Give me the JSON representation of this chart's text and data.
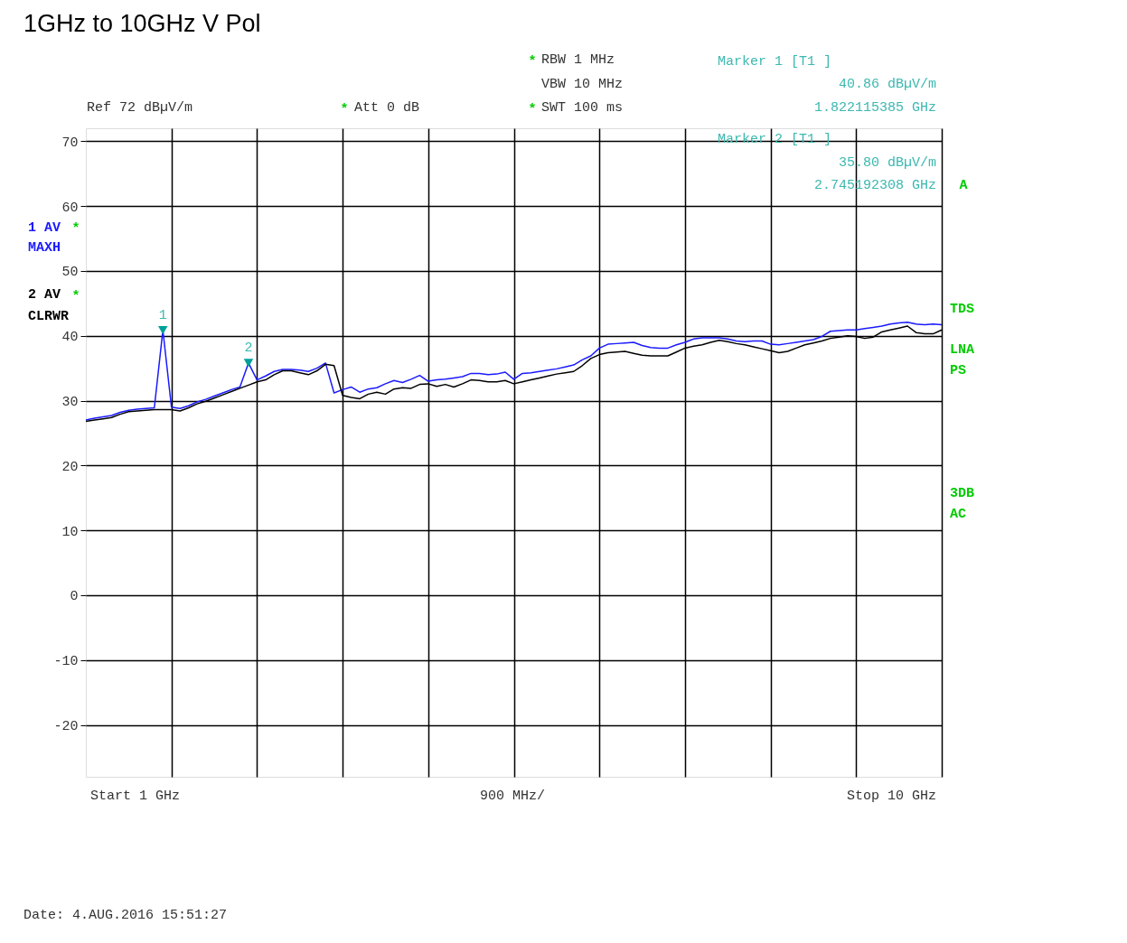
{
  "chart_data": {
    "type": "line",
    "title": "1GHz to 10GHz V Pol",
    "categories": [
      null,
      null,
      null,
      null,
      null,
      null,
      null,
      null,
      null,
      null,
      null,
      null,
      null,
      null,
      null,
      null,
      null,
      null,
      null,
      null,
      null,
      null,
      null,
      null,
      null,
      null,
      null,
      null,
      null,
      null,
      null,
      null,
      null,
      null,
      null,
      null,
      null,
      null,
      null,
      null,
      null,
      null,
      null,
      null,
      null,
      null,
      null,
      null,
      null,
      null,
      null,
      null,
      null,
      null,
      null,
      null,
      null,
      null,
      null,
      null,
      null,
      null,
      null,
      null,
      null,
      null,
      null,
      null,
      null,
      null,
      null,
      null,
      null,
      null,
      null,
      null,
      null,
      null,
      null,
      null,
      null,
      null,
      null,
      null,
      null,
      null,
      null,
      null,
      null,
      null,
      null,
      null,
      null,
      null,
      null,
      null,
      null,
      null,
      null,
      null,
      null
    ],
    "ylim": [
      -28,
      72
    ],
    "yticks": [
      -20,
      -10,
      0,
      10,
      20,
      30,
      40,
      50,
      60,
      70
    ],
    "tick_labels": "y",
    "grid": true,
    "line_style": "solid",
    "series": [
      {
        "name": "1 AV",
        "color": "#1a1aff",
        "marker": "none",
        "values": [
          27.0,
          27.3,
          27.5,
          27.7,
          28.2,
          28.5,
          28.7,
          28.8,
          28.9,
          40.86,
          29.0,
          28.8,
          29.2,
          29.8,
          30.2,
          30.7,
          31.2,
          31.7,
          32.1,
          35.8,
          33.2,
          33.8,
          34.5,
          34.8,
          34.8,
          34.7,
          34.5,
          35.0,
          35.8,
          31.2,
          31.7,
          32.1,
          31.3,
          31.8,
          32.0,
          32.6,
          33.1,
          32.8,
          33.3,
          33.9,
          33.0,
          33.2,
          33.3,
          33.5,
          33.7,
          34.2,
          34.2,
          34.0,
          34.1,
          34.4,
          33.3,
          34.2,
          34.3,
          34.5,
          34.7,
          34.9,
          35.2,
          35.5,
          36.3,
          36.9,
          38.1,
          38.7,
          38.8,
          38.9,
          39.0,
          38.5,
          38.2,
          38.1,
          38.1,
          38.6,
          39.0,
          39.5,
          39.7,
          39.7,
          39.7,
          39.5,
          39.2,
          39.1,
          39.2,
          39.2,
          38.7,
          38.6,
          38.8,
          39.0,
          39.2,
          39.4,
          39.9,
          40.7,
          40.8,
          40.9,
          40.9,
          41.1,
          41.3,
          41.5,
          41.8,
          42.0,
          42.1,
          41.8,
          41.7,
          41.8,
          41.7
        ]
      },
      {
        "name": "2 AV",
        "color": "#000000",
        "marker": "none",
        "values": [
          26.8,
          27.0,
          27.2,
          27.4,
          27.9,
          28.3,
          28.4,
          28.5,
          28.6,
          28.6,
          28.6,
          28.4,
          28.9,
          29.5,
          29.9,
          30.4,
          30.9,
          31.4,
          31.9,
          32.4,
          32.9,
          33.2,
          34.0,
          34.6,
          34.6,
          34.3,
          34.0,
          34.6,
          35.6,
          35.4,
          30.8,
          30.5,
          30.3,
          31.0,
          31.3,
          31.0,
          31.8,
          32.0,
          31.9,
          32.5,
          32.6,
          32.2,
          32.5,
          32.1,
          32.6,
          33.2,
          33.1,
          32.9,
          32.9,
          33.1,
          32.6,
          32.9,
          33.2,
          33.5,
          33.8,
          34.1,
          34.3,
          34.5,
          35.4,
          36.5,
          37.1,
          37.4,
          37.5,
          37.6,
          37.3,
          37.0,
          36.9,
          36.9,
          36.9,
          37.5,
          38.1,
          38.4,
          38.6,
          39.0,
          39.3,
          39.1,
          38.8,
          38.6,
          38.3,
          38.0,
          37.7,
          37.4,
          37.6,
          38.1,
          38.6,
          38.9,
          39.2,
          39.6,
          39.8,
          40.0,
          39.9,
          39.6,
          39.8,
          40.6,
          40.9,
          41.2,
          41.5,
          40.5,
          40.3,
          40.3,
          40.9
        ]
      },
      {
        "color": "#00a09a",
        "type": "scatter",
        "marker": "triangle",
        "values": [
          null,
          null,
          null,
          null,
          null,
          null,
          null,
          null,
          null,
          40.86,
          null,
          null,
          null,
          null,
          null,
          null,
          null,
          null,
          null,
          35.8,
          null,
          null,
          null,
          null,
          null,
          null,
          null,
          null,
          null,
          null,
          null,
          null,
          null,
          null,
          null,
          null,
          null,
          null,
          null,
          null,
          null,
          null,
          null,
          null,
          null,
          null,
          null,
          null,
          null,
          null,
          null,
          null,
          null,
          null,
          null,
          null,
          null,
          null,
          null,
          null,
          null,
          null,
          null,
          null,
          null,
          null,
          null,
          null,
          null,
          null,
          null,
          null,
          null,
          null,
          null,
          null,
          null,
          null,
          null,
          null,
          null,
          null,
          null,
          null,
          null,
          null,
          null,
          null,
          null,
          null,
          null,
          null,
          null,
          null,
          null,
          null,
          null,
          null,
          null,
          null,
          null
        ]
      }
    ],
    "annotations": [
      "RBW  1 MHz",
      "VBW  10 MHz",
      "SWT  100 ms",
      "Ref  72 dBµV/m",
      "Att  0 dB",
      "*",
      "*",
      "*",
      "Marker 1 [T1 ]",
      "40.86 dBµV/m",
      "1.822115385 GHz",
      "Marker 2 [T1 ]",
      "35.80 dBµV/m",
      "2.745192308 GHz",
      "A",
      "TDS",
      "LNA",
      "PS",
      "3DB",
      "AC",
      "MAXH",
      "CLRWR",
      "*",
      "*",
      "Start  1 GHz",
      "900 MHz/",
      "Stop  10 GHz",
      "Date: 4.AUG.2016  15:51:27",
      {
        "text": "1",
        "y": 40.86
      },
      {
        "text": "2",
        "y": 35.8
      }
    ]
  }
}
